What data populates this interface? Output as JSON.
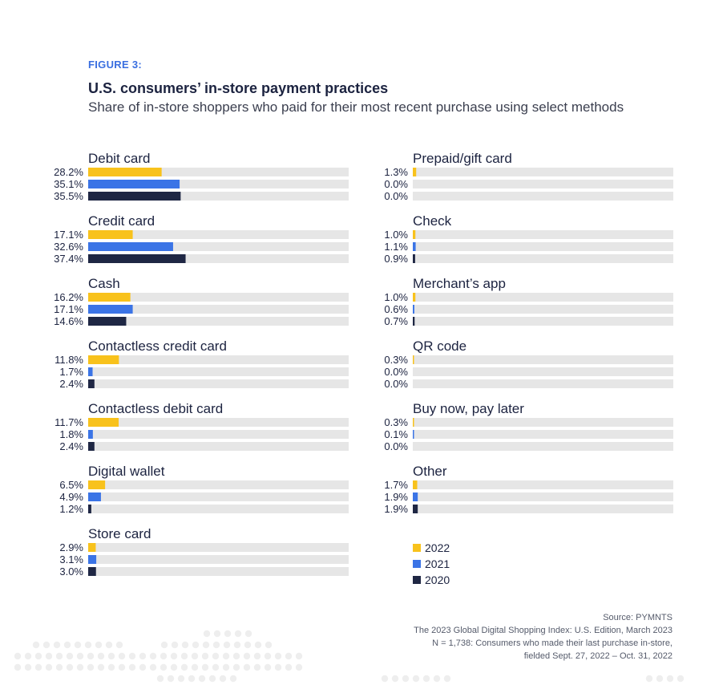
{
  "header": {
    "figure_label": "FIGURE 3:",
    "title": "U.S. consumers’ in-store payment practices",
    "subtitle": "Share of in-store shoppers who paid for their most recent purchase using select methods"
  },
  "colors": {
    "2022": "#f8c21c",
    "2021": "#3b74e6",
    "2020": "#1f2744",
    "track": "#e6e6e6"
  },
  "chart_data": {
    "type": "bar",
    "orientation": "horizontal",
    "xlim": [
      0,
      100
    ],
    "series_names": [
      "2022",
      "2021",
      "2020"
    ],
    "groups": [
      {
        "label": "Debit card",
        "values": [
          28.2,
          35.1,
          35.5
        ],
        "labels": [
          "28.2%",
          "35.1%",
          "35.5%"
        ]
      },
      {
        "label": "Credit card",
        "values": [
          17.1,
          32.6,
          37.4
        ],
        "labels": [
          "17.1%",
          "32.6%",
          "37.4%"
        ]
      },
      {
        "label": "Cash",
        "values": [
          16.2,
          17.1,
          14.6
        ],
        "labels": [
          "16.2%",
          "17.1%",
          "14.6%"
        ]
      },
      {
        "label": "Contactless credit card",
        "values": [
          11.8,
          1.7,
          2.4
        ],
        "labels": [
          "11.8%",
          "1.7%",
          "2.4%"
        ]
      },
      {
        "label": "Contactless debit card",
        "values": [
          11.7,
          1.8,
          2.4
        ],
        "labels": [
          "11.7%",
          "1.8%",
          "2.4%"
        ]
      },
      {
        "label": "Digital wallet",
        "values": [
          6.5,
          4.9,
          1.2
        ],
        "labels": [
          "6.5%",
          "4.9%",
          "1.2%"
        ]
      },
      {
        "label": "Store card",
        "values": [
          2.9,
          3.1,
          3.0
        ],
        "labels": [
          "2.9%",
          "3.1%",
          "3.0%"
        ]
      },
      {
        "label": "Prepaid/gift card",
        "values": [
          1.3,
          0.0,
          0.0
        ],
        "labels": [
          "1.3%",
          "0.0%",
          "0.0%"
        ]
      },
      {
        "label": "Check",
        "values": [
          1.0,
          1.1,
          0.9
        ],
        "labels": [
          "1.0%",
          "1.1%",
          "0.9%"
        ]
      },
      {
        "label": "Merchant’s app",
        "values": [
          1.0,
          0.6,
          0.7
        ],
        "labels": [
          "1.0%",
          "0.6%",
          "0.7%"
        ]
      },
      {
        "label": "QR code",
        "values": [
          0.3,
          0.0,
          0.0
        ],
        "labels": [
          "0.3%",
          "0.0%",
          "0.0%"
        ]
      },
      {
        "label": "Buy now, pay later",
        "values": [
          0.3,
          0.1,
          0.0
        ],
        "labels": [
          "0.3%",
          "0.1%",
          "0.0%"
        ]
      },
      {
        "label": "Other",
        "values": [
          1.7,
          1.9,
          1.9
        ],
        "labels": [
          "1.7%",
          "1.9%",
          "1.9%"
        ]
      }
    ]
  },
  "legend": [
    {
      "label": "2022",
      "color": "#f8c21c"
    },
    {
      "label": "2021",
      "color": "#3b74e6"
    },
    {
      "label": "2020",
      "color": "#1f2744"
    }
  ],
  "source": {
    "line1": "Source: PYMNTS",
    "line2": "The 2023 Global Digital Shopping Index: U.S. Edition, March 2023",
    "line3": "N = 1,738: Consumers who made their last purchase in-store,",
    "line4": "fielded Sept. 27, 2022 – Oct. 31, 2022"
  }
}
